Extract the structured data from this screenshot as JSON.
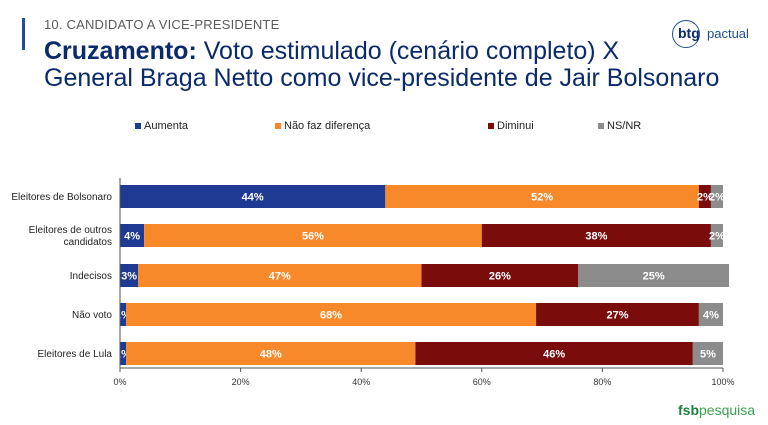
{
  "header": {
    "section_label": "10. CANDIDATO A VICE-PRESIDENTE",
    "title_bold": "Cruzamento:",
    "title_rest_line1": " Voto estimulado (cenário completo) X",
    "title_line2": "General Braga Netto como vice-presidente de Jair Bolsonaro",
    "accent_color": "#1f4e96"
  },
  "logos": {
    "btg_short": "btg",
    "btg_rest": "pactual",
    "fsb_bold": "fsb",
    "fsb_rest": "pesquisa"
  },
  "chart_data": {
    "type": "bar",
    "orientation": "horizontal",
    "stacked": true,
    "categories": [
      [
        "Eleitores de Bolsonaro"
      ],
      [
        "Eleitores de outros",
        "candidatos"
      ],
      [
        "Indecisos"
      ],
      [
        "Não voto"
      ],
      [
        "Eleitores de Lula"
      ]
    ],
    "series": [
      {
        "name": "Aumenta",
        "color": "#1f3a93",
        "values": [
          44,
          4,
          3,
          1,
          1
        ]
      },
      {
        "name": "Não faz diferença",
        "color": "#f7892b",
        "values": [
          52,
          56,
          47,
          68,
          48
        ]
      },
      {
        "name": "Diminui",
        "color": "#7b0c0c",
        "values": [
          2,
          38,
          26,
          27,
          46
        ]
      },
      {
        "name": "NS/NR",
        "color": "#8c8c8c",
        "values": [
          2,
          2,
          25,
          4,
          5
        ]
      }
    ],
    "x_ticks": [
      "0%",
      "20%",
      "40%",
      "60%",
      "80%",
      "100%"
    ],
    "xlim": [
      0,
      100
    ],
    "legend_position": "top",
    "grid": false
  }
}
